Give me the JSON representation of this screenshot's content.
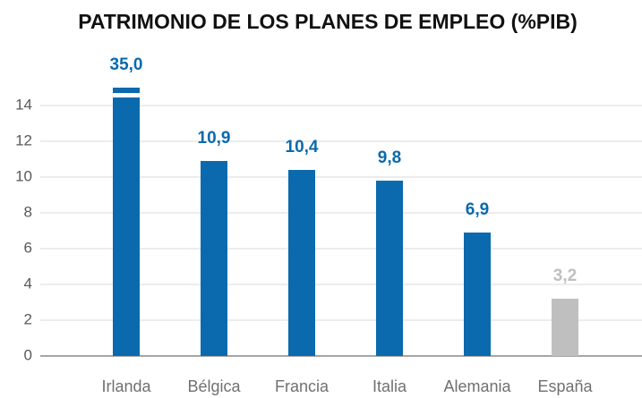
{
  "chart_data": {
    "type": "bar",
    "title": "PATRIMONIO DE LOS PLANES DE EMPLEO (%PIB)",
    "categories": [
      "Irlanda",
      "Bélgica",
      "Francia",
      "Italia",
      "Alemania",
      "España"
    ],
    "values": [
      35.0,
      10.9,
      10.4,
      9.8,
      6.9,
      3.2
    ],
    "value_labels": [
      "35,0",
      "10,9",
      "10,4",
      "9,8",
      "6,9",
      "3,2"
    ],
    "colors": [
      "#0a6aad",
      "#0a6aad",
      "#0a6aad",
      "#0a6aad",
      "#0a6aad",
      "#bfbfbf"
    ],
    "ylim": [
      0,
      15
    ],
    "yticks": [
      0,
      2,
      4,
      6,
      8,
      10,
      12,
      14
    ],
    "grid": true,
    "axis_break": true
  }
}
